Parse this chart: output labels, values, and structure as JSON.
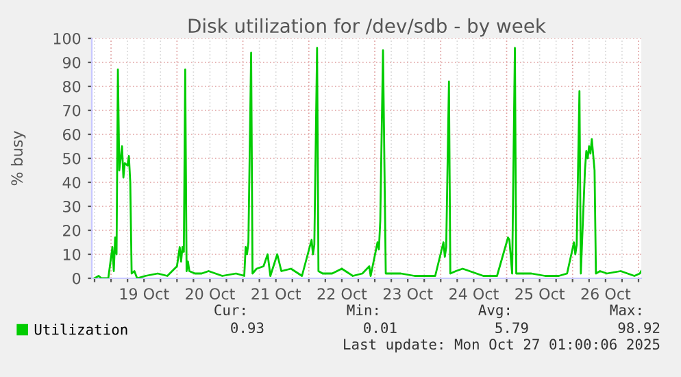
{
  "chart_data": {
    "type": "line",
    "title": "Disk utilization for /dev/sdb - by week",
    "ylabel": "% busy",
    "xlim": [
      "2025-10-18T17:00",
      "2025-10-27T01:00"
    ],
    "xticks": [
      {
        "value": "2025-10-18T18:00",
        "label": null
      },
      {
        "value": "2025-10-19T00:00",
        "label": null
      },
      {
        "value": "2025-10-19T06:00",
        "label": null
      },
      {
        "value": "2025-10-19T12:00",
        "label": "19 Oct"
      },
      {
        "value": "2025-10-19T18:00",
        "label": null
      },
      {
        "value": "2025-10-20T00:00",
        "label": null
      },
      {
        "value": "2025-10-20T06:00",
        "label": null
      },
      {
        "value": "2025-10-20T12:00",
        "label": "20 Oct"
      },
      {
        "value": "2025-10-20T18:00",
        "label": null
      },
      {
        "value": "2025-10-21T00:00",
        "label": null
      },
      {
        "value": "2025-10-21T06:00",
        "label": null
      },
      {
        "value": "2025-10-21T12:00",
        "label": "21 Oct"
      },
      {
        "value": "2025-10-21T18:00",
        "label": null
      },
      {
        "value": "2025-10-22T00:00",
        "label": null
      },
      {
        "value": "2025-10-22T06:00",
        "label": null
      },
      {
        "value": "2025-10-22T12:00",
        "label": "22 Oct"
      },
      {
        "value": "2025-10-22T18:00",
        "label": null
      },
      {
        "value": "2025-10-23T00:00",
        "label": null
      },
      {
        "value": "2025-10-23T06:00",
        "label": null
      },
      {
        "value": "2025-10-23T12:00",
        "label": "23 Oct"
      },
      {
        "value": "2025-10-23T18:00",
        "label": null
      },
      {
        "value": "2025-10-24T00:00",
        "label": null
      },
      {
        "value": "2025-10-24T06:00",
        "label": null
      },
      {
        "value": "2025-10-24T12:00",
        "label": "24 Oct"
      },
      {
        "value": "2025-10-24T18:00",
        "label": null
      },
      {
        "value": "2025-10-25T00:00",
        "label": null
      },
      {
        "value": "2025-10-25T06:00",
        "label": null
      },
      {
        "value": "2025-10-25T12:00",
        "label": "25 Oct"
      },
      {
        "value": "2025-10-25T18:00",
        "label": null
      },
      {
        "value": "2025-10-26T00:00",
        "label": null
      },
      {
        "value": "2025-10-26T06:00",
        "label": null
      },
      {
        "value": "2025-10-26T12:00",
        "label": "26 Oct"
      },
      {
        "value": "2025-10-26T18:00",
        "label": null
      },
      {
        "value": "2025-10-27T00:00",
        "label": null
      }
    ],
    "ylim": [
      0,
      100
    ],
    "yticks": [
      0,
      10,
      20,
      30,
      40,
      50,
      60,
      70,
      80,
      90,
      100
    ],
    "grid": true,
    "legend": "bottom",
    "marker": "none",
    "line_style": "solid",
    "annotations": [
      "Cur:",
      "Min:",
      "Avg:",
      "Max:",
      "0.93",
      "0.01",
      "5.79",
      "98.92",
      "Last update: Mon Oct 27 01:00:06 2025"
    ],
    "series": [
      {
        "name": "Utilization",
        "color": "#00cc00",
        "x": [
          "2025-10-18T18:00",
          "2025-10-18T19:30",
          "2025-10-18T20:30",
          "2025-10-18T23:00",
          "2025-10-19T00:30",
          "2025-10-19T01:00",
          "2025-10-19T01:30",
          "2025-10-19T02:00",
          "2025-10-19T02:30",
          "2025-10-19T03:00",
          "2025-10-19T04:00",
          "2025-10-19T04:30",
          "2025-10-19T05:00",
          "2025-10-19T06:00",
          "2025-10-19T06:30",
          "2025-10-19T07:00",
          "2025-10-19T07:30",
          "2025-10-19T08:30",
          "2025-10-19T09:30",
          "2025-10-19T12:30",
          "2025-10-19T17:00",
          "2025-10-19T20:30",
          "2025-10-20T00:00",
          "2025-10-20T01:00",
          "2025-10-20T01:30",
          "2025-10-20T02:00",
          "2025-10-20T02:30",
          "2025-10-20T03:00",
          "2025-10-20T03:30",
          "2025-10-20T04:00",
          "2025-10-20T04:30",
          "2025-10-20T06:30",
          "2025-10-20T09:00",
          "2025-10-20T11:30",
          "2025-10-20T16:30",
          "2025-10-20T21:30",
          "2025-10-21T00:30",
          "2025-10-21T01:00",
          "2025-10-21T01:30",
          "2025-10-21T02:00",
          "2025-10-21T03:00",
          "2025-10-21T03:30",
          "2025-10-21T05:00",
          "2025-10-21T07:30",
          "2025-10-21T09:00",
          "2025-10-21T10:00",
          "2025-10-21T12:30",
          "2025-10-21T14:00",
          "2025-10-21T17:30",
          "2025-10-21T21:30",
          "2025-10-22T01:00",
          "2025-10-22T01:30",
          "2025-10-22T02:00",
          "2025-10-22T03:00",
          "2025-10-22T03:30",
          "2025-10-22T05:00",
          "2025-10-22T08:30",
          "2025-10-22T12:00",
          "2025-10-22T16:00",
          "2025-10-22T19:30",
          "2025-10-22T22:00",
          "2025-10-22T22:30",
          "2025-10-23T01:00",
          "2025-10-23T01:30",
          "2025-10-23T02:00",
          "2025-10-23T03:00",
          "2025-10-23T04:00",
          "2025-10-23T07:00",
          "2025-10-23T09:30",
          "2025-10-23T14:30",
          "2025-10-23T19:30",
          "2025-10-23T22:00",
          "2025-10-24T01:00",
          "2025-10-24T01:30",
          "2025-10-24T02:00",
          "2025-10-24T03:00",
          "2025-10-24T03:30",
          "2025-10-24T05:30",
          "2025-10-24T08:00",
          "2025-10-24T10:30",
          "2025-10-24T15:30",
          "2025-10-24T20:30",
          "2025-10-25T00:30",
          "2025-10-25T01:00",
          "2025-10-25T02:00",
          "2025-10-25T03:00",
          "2025-10-25T03:30",
          "2025-10-25T06:30",
          "2025-10-25T09:00",
          "2025-10-25T14:00",
          "2025-10-25T19:00",
          "2025-10-25T22:00",
          "2025-10-26T00:30",
          "2025-10-26T01:00",
          "2025-10-26T01:30",
          "2025-10-26T02:30",
          "2025-10-26T03:00",
          "2025-10-26T04:30",
          "2025-10-26T05:00",
          "2025-10-26T05:30",
          "2025-10-26T06:00",
          "2025-10-26T06:30",
          "2025-10-26T07:00",
          "2025-10-26T08:00",
          "2025-10-26T08:30",
          "2025-10-26T10:00",
          "2025-10-26T12:30",
          "2025-10-26T17:30",
          "2025-10-26T22:30",
          "2025-10-27T00:30",
          "2025-10-27T01:00"
        ],
        "values": [
          0,
          1,
          0,
          0,
          13,
          3,
          17,
          10,
          87,
          45,
          55,
          42,
          48,
          47,
          51,
          40,
          2,
          3,
          0,
          1,
          2,
          1,
          5,
          13,
          7,
          13,
          11,
          87,
          3,
          7,
          3,
          2,
          2,
          3,
          1,
          2,
          1,
          13,
          10,
          15,
          94,
          2,
          4,
          5,
          10,
          1,
          10,
          3,
          4,
          1,
          16,
          10,
          14,
          96,
          3,
          2,
          2,
          4,
          1,
          2,
          5,
          1,
          15,
          12,
          24,
          95,
          2,
          2,
          2,
          1,
          1,
          1,
          15,
          9,
          13,
          82,
          2,
          3,
          4,
          3,
          1,
          1,
          17,
          16,
          2,
          96,
          2,
          2,
          2,
          1,
          1,
          2,
          15,
          10,
          14,
          78,
          2,
          45,
          53,
          50,
          55,
          52,
          58,
          45,
          2,
          3,
          2,
          3,
          1,
          2,
          3
        ]
      }
    ]
  }
}
